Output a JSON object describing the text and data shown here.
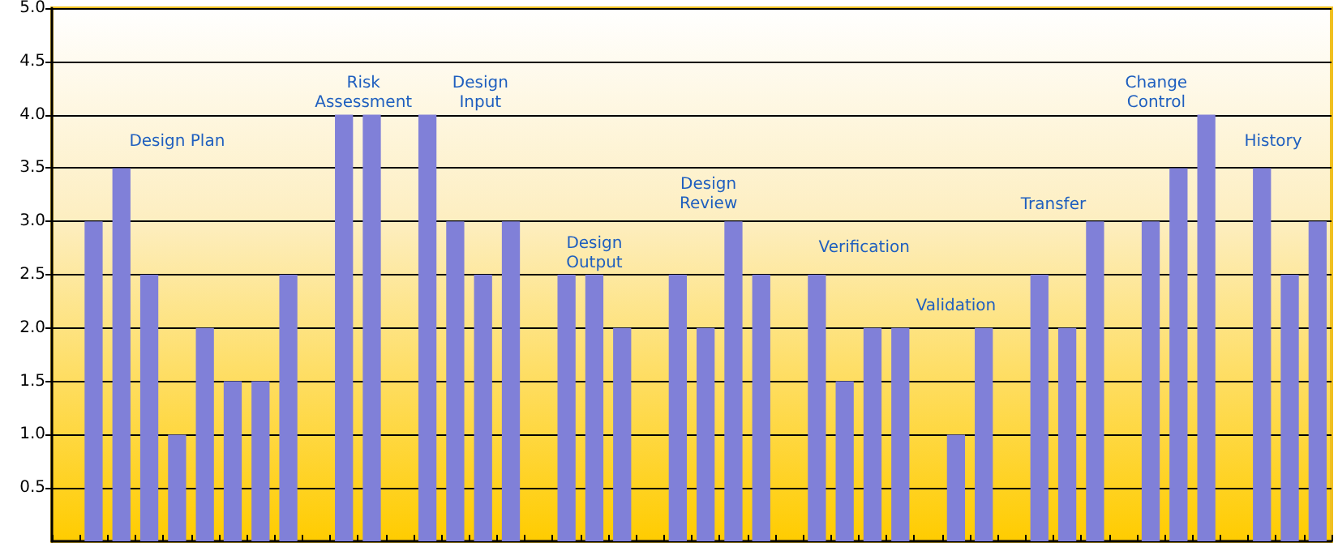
{
  "chart_data": {
    "type": "bar",
    "tick_labels": "y",
    "grid": "y",
    "color": "#8080d8",
    "categories": [
      null,
      null,
      null,
      null,
      null,
      null,
      null,
      null,
      null,
      null,
      null,
      null,
      null,
      null,
      null,
      null,
      null,
      null,
      null,
      null,
      null,
      null,
      null,
      null,
      null,
      null,
      null,
      null,
      null,
      null,
      null,
      null,
      null,
      null,
      null,
      null,
      null,
      null,
      null,
      null,
      null,
      null,
      null,
      null,
      null,
      null
    ],
    "values": [
      null,
      3.0,
      3.5,
      2.5,
      1.0,
      2.0,
      1.5,
      1.5,
      2.5,
      null,
      4.0,
      4.0,
      null,
      4.0,
      3.0,
      2.5,
      3.0,
      null,
      2.5,
      2.5,
      2.0,
      null,
      2.5,
      2.0,
      3.0,
      2.5,
      null,
      2.5,
      1.5,
      2.0,
      2.0,
      null,
      1.0,
      2.0,
      null,
      2.5,
      2.0,
      3.0,
      null,
      3.0,
      3.5,
      4.0,
      null,
      3.5,
      2.5,
      3.0
    ],
    "ylim": [
      0,
      5
    ],
    "yticks": [
      {
        "value": 0.5,
        "label": "0.5"
      },
      {
        "value": 1,
        "label": "1.0"
      },
      {
        "value": 1.5,
        "label": "1.5"
      },
      {
        "value": 2,
        "label": "2.0"
      },
      {
        "value": 2.5,
        "label": "2.5"
      },
      {
        "value": 3,
        "label": "3.0"
      },
      {
        "value": 3.5,
        "label": "3.5"
      },
      {
        "value": 4,
        "label": "4.0"
      },
      {
        "value": 4.5,
        "label": "4.5"
      },
      {
        "value": 5,
        "label": "5.0"
      }
    ],
    "annotations": [
      "Design Plan",
      "Risk\nAssessment",
      "Design\nInput",
      "Design\nOutput",
      "Design\nReview",
      "Verification",
      "Validation",
      "Transfer",
      "Change\nControl",
      "History"
    ]
  }
}
